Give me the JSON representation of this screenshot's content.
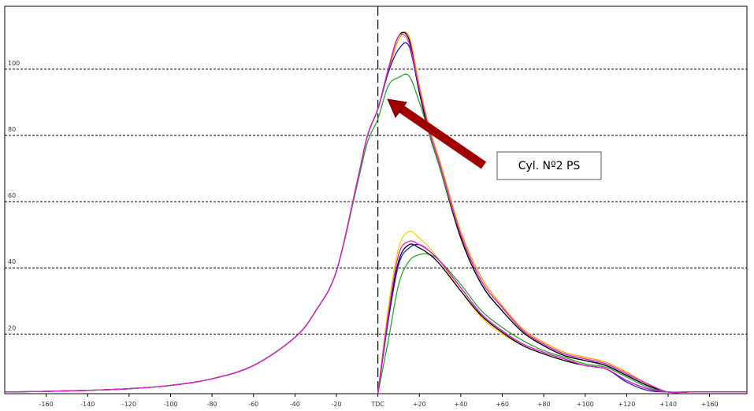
{
  "chart_data": {
    "type": "line",
    "annotation": "Cyl. Nº2 PS",
    "x": [
      -180,
      -160,
      -140,
      -120,
      -100,
      -80,
      -60,
      -40,
      -30,
      -20,
      -10,
      -5,
      0,
      5,
      10,
      15,
      20,
      25,
      30,
      40,
      50,
      60,
      70,
      80,
      90,
      100,
      110,
      120,
      130,
      140,
      150,
      160,
      170,
      178
    ],
    "xlim": [
      -180,
      178
    ],
    "xticks": [
      -160,
      -140,
      -120,
      -100,
      -80,
      -60,
      -40,
      -20,
      {
        "value": 0,
        "label": "TDC"
      },
      {
        "value": 20,
        "label": "+20"
      },
      {
        "value": 40,
        "label": "+40"
      },
      {
        "value": 60,
        "label": "+60"
      },
      {
        "value": 80,
        "label": "+80"
      },
      {
        "value": 100,
        "label": "+100"
      },
      {
        "value": 120,
        "label": "+120"
      },
      {
        "value": 140,
        "label": "+140"
      },
      {
        "value": 160,
        "label": "+160"
      }
    ],
    "ylim": [
      2,
      119
    ],
    "yticks": [
      20,
      40,
      60,
      80,
      100
    ],
    "grid": true,
    "series": [
      {
        "color": "#ff9900",
        "values": [
          2.5,
          2.7,
          3,
          3.5,
          4.5,
          6.5,
          10.5,
          19,
          27,
          39,
          66,
          80,
          88,
          99,
          109,
          110,
          95,
          82,
          72,
          51,
          37,
          28.5,
          21.5,
          17.5,
          14.5,
          13,
          11.5,
          8.5,
          5,
          2.5,
          2.5,
          2.5,
          2.5,
          2.5
        ]
      },
      {
        "color": "#2020c0",
        "values": [
          2.5,
          2.7,
          3,
          3.5,
          4.5,
          6.5,
          10.5,
          19,
          27,
          39,
          66,
          80,
          88,
          99,
          106,
          107,
          93,
          80,
          70,
          49,
          35,
          27,
          20.5,
          16.5,
          13.5,
          12,
          10.5,
          7.5,
          4.5,
          2.5,
          2.5,
          2.5,
          2.5,
          2.5
        ]
      },
      {
        "color": "#000000",
        "values": [
          2.5,
          2.7,
          3,
          3.5,
          4.5,
          6.5,
          10.5,
          19,
          27,
          39,
          66,
          80,
          88,
          100,
          110,
          109,
          93,
          80,
          70,
          49,
          35,
          27,
          20.5,
          16.5,
          13.5,
          12,
          10.5,
          7.5,
          4.5,
          2.5,
          2.5,
          2.5,
          2.5,
          2.5
        ]
      },
      {
        "color": "#30a030",
        "values": [
          2.5,
          2.7,
          3,
          3.5,
          4.5,
          6.5,
          10.5,
          19,
          27,
          39,
          65,
          78,
          85,
          95,
          97.5,
          98,
          90,
          80,
          70,
          50,
          36,
          28,
          21,
          17,
          14,
          12.5,
          11,
          8,
          5,
          2.5,
          2.5,
          2.5,
          2.5,
          2.5
        ]
      },
      {
        "color": "#e020d0",
        "values": [
          2.5,
          2.7,
          3,
          3.5,
          4.5,
          6.5,
          10.5,
          19,
          27,
          39,
          66,
          80,
          88,
          100,
          110,
          108,
          94,
          81,
          71,
          50,
          36,
          28,
          21,
          17,
          14,
          12.5,
          11,
          8,
          5,
          2.5,
          2.5,
          2.5,
          2.5,
          2.5
        ]
      },
      {
        "color": "#ffd000",
        "values": [
          null,
          null,
          null,
          null,
          null,
          null,
          null,
          null,
          null,
          null,
          null,
          null,
          2,
          28,
          46,
          51,
          49,
          46,
          42,
          33,
          25,
          20,
          16.5,
          14,
          12,
          10.5,
          9.5,
          6,
          3.5,
          2.5,
          2.5,
          2.5,
          2.5,
          2.5
        ]
      },
      {
        "color": "#30a030",
        "values": [
          null,
          null,
          null,
          null,
          null,
          null,
          null,
          null,
          null,
          null,
          null,
          null,
          2,
          18,
          35,
          42,
          44,
          44,
          42,
          35,
          27,
          22,
          18,
          15,
          13,
          11,
          10,
          7,
          4,
          2.5,
          2.5,
          2.5,
          2.5,
          2.5
        ]
      },
      {
        "color": "#000000",
        "values": [
          null,
          null,
          null,
          null,
          null,
          null,
          null,
          null,
          null,
          null,
          null,
          null,
          2,
          25,
          42,
          47,
          46,
          44,
          41,
          33,
          25.5,
          20.5,
          16.5,
          14,
          12,
          10.5,
          9.5,
          6,
          3.5,
          2.5,
          2.5,
          2.5,
          2.5,
          2.5
        ]
      },
      {
        "color": "#2020c0",
        "values": [
          null,
          null,
          null,
          null,
          null,
          null,
          null,
          null,
          null,
          null,
          null,
          null,
          2,
          24,
          41,
          46,
          47,
          45,
          42,
          34,
          26,
          21,
          17,
          14.5,
          12.5,
          10.5,
          9.5,
          5.5,
          3,
          2.5,
          2.5,
          2.5,
          2.5,
          2.5
        ]
      },
      {
        "color": "#e020d0",
        "values": [
          null,
          null,
          null,
          null,
          null,
          null,
          null,
          null,
          null,
          null,
          null,
          null,
          2,
          26,
          44,
          48,
          47,
          45,
          42,
          34,
          26,
          21,
          17,
          14.5,
          12.5,
          10.5,
          9.5,
          6,
          3.5,
          2.5,
          2.5,
          2.5,
          2.5,
          2.5
        ]
      }
    ]
  }
}
